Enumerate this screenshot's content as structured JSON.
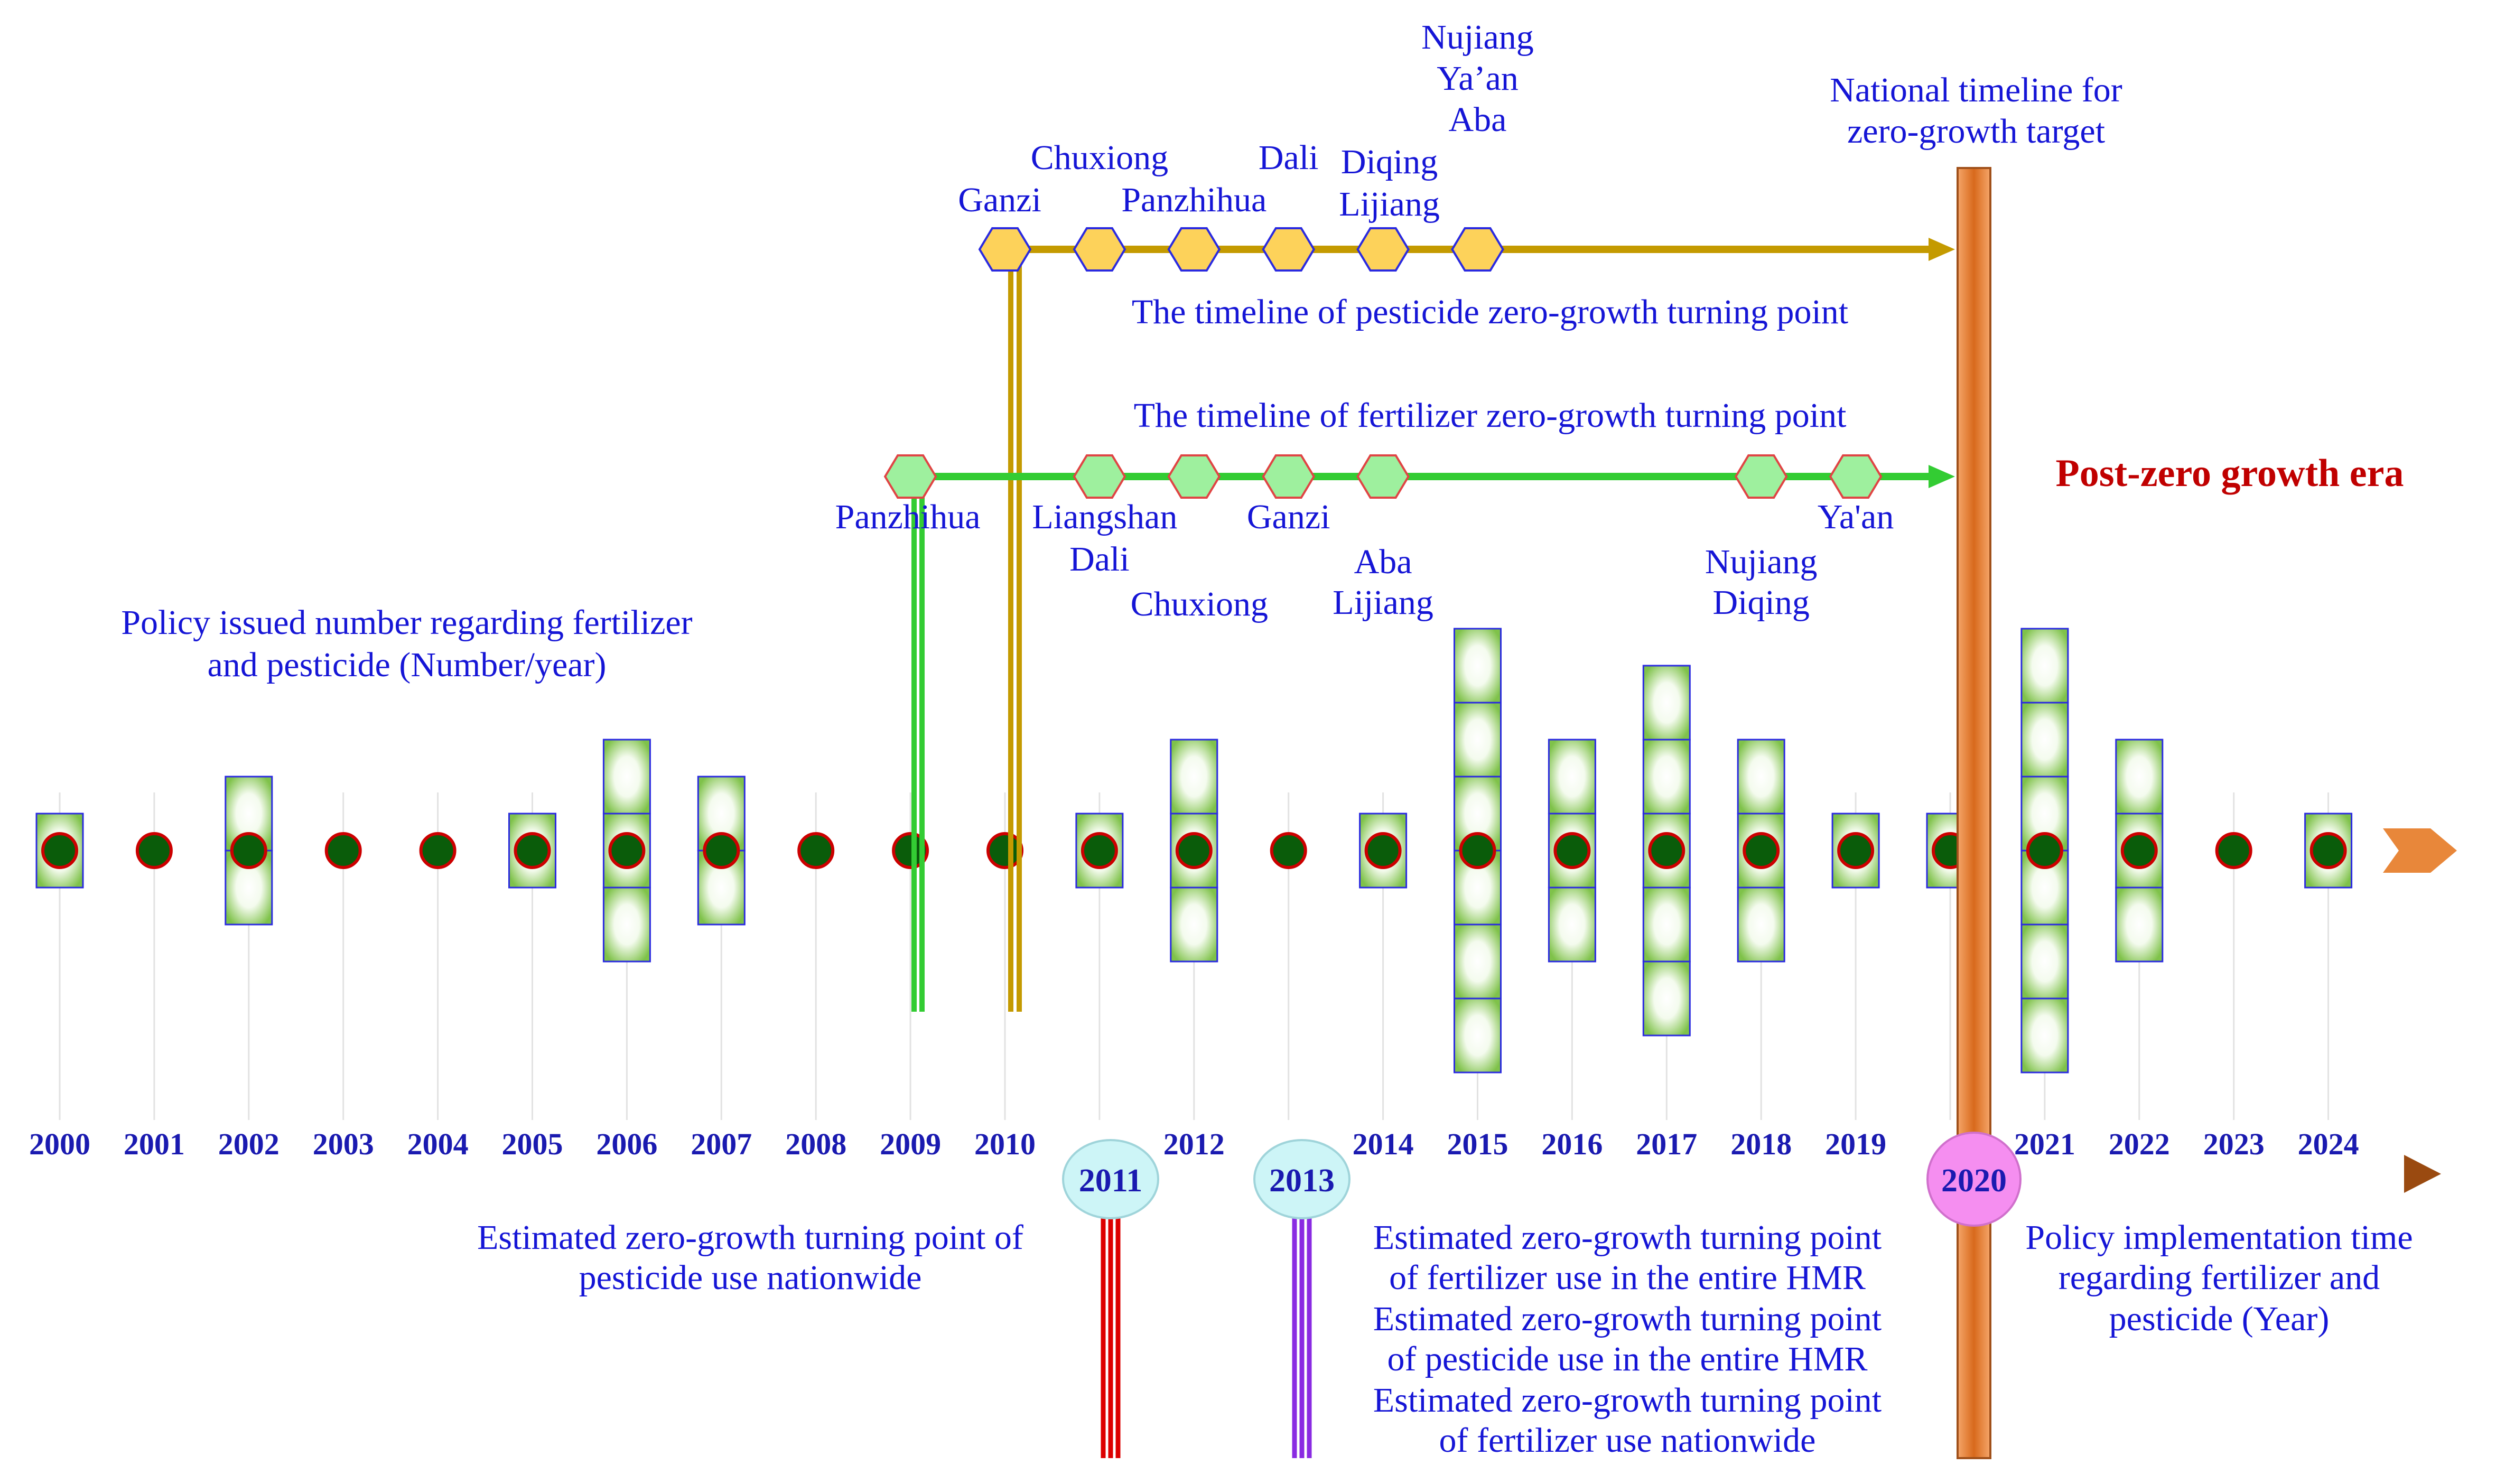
{
  "years": [
    "2000",
    "2001",
    "2002",
    "2003",
    "2004",
    "2005",
    "2006",
    "2007",
    "2008",
    "2009",
    "2010",
    "2011",
    "2012",
    "2013",
    "2014",
    "2015",
    "2016",
    "2017",
    "2018",
    "2019",
    "2020",
    "2021",
    "2022",
    "2023",
    "2024"
  ],
  "policy_counts": [
    1,
    0,
    2,
    0,
    0,
    1,
    3,
    2,
    0,
    0,
    0,
    1,
    3,
    0,
    1,
    6,
    3,
    5,
    3,
    1,
    1,
    6,
    3,
    0,
    1
  ],
  "labels": {
    "policy_axis_line1": "Policy issued number regarding fertilizer",
    "policy_axis_line2": "and pesticide (Number/year)",
    "pesticide_timeline": "The timeline of pesticide zero-growth turning point",
    "fertilizer_timeline": "The timeline of fertilizer zero-growth turning point",
    "national_line1": "National timeline for",
    "national_line2": "zero-growth target",
    "post_era": "Post-zero growth era",
    "est_pest_national_1": "Estimated zero-growth turning point of",
    "est_pest_national_2": "pesticide use nationwide",
    "est_2013_1": "Estimated zero-growth turning point",
    "est_2013_2": "of fertilizer use in the entire HMR",
    "est_2013_3": "Estimated zero-growth turning point",
    "est_2013_4": "of pesticide use in the entire HMR",
    "est_2013_5": "Estimated zero-growth turning point",
    "est_2013_6": "of fertilizer use nationwide",
    "impl_1": "Policy implementation time",
    "impl_2": "regarding fertilizer and",
    "impl_3": "pesticide (Year)"
  },
  "highlight_years": {
    "y2011": "2011",
    "y2013": "2013",
    "y2020": "2020"
  },
  "pesticide_points": [
    {
      "year": 2010,
      "regions": [
        "Ganzi"
      ]
    },
    {
      "year": 2011,
      "regions": [
        "Chuxiong"
      ]
    },
    {
      "year": 2012,
      "regions": [
        "Panzhihua"
      ]
    },
    {
      "year": 2013,
      "regions": [
        "Dali"
      ]
    },
    {
      "year": 2014,
      "regions": [
        "Diqing",
        "Lijiang"
      ]
    },
    {
      "year": 2015,
      "regions": [
        "Nujiang",
        "Ya’an",
        "Aba"
      ]
    }
  ],
  "fertilizer_points": [
    {
      "year": 2009,
      "regions": [
        "Panzhihua"
      ]
    },
    {
      "year": 2011,
      "regions": [
        "Liangshan",
        "Dali"
      ]
    },
    {
      "year": 2012,
      "regions": [
        "Chuxiong"
      ]
    },
    {
      "year": 2013,
      "regions": [
        "Ganzi"
      ]
    },
    {
      "year": 2014,
      "regions": [
        "Aba",
        "Lijiang"
      ]
    },
    {
      "year": 2018,
      "regions": [
        "Nujiang",
        "Diqing"
      ]
    },
    {
      "year": 2019,
      "regions": [
        "Ya'an"
      ]
    }
  ],
  "colors": {
    "pesticide": "#c49a00",
    "fertilizer": "#33cc33",
    "national": "#e07b2a",
    "dot": "#0a5c0a",
    "dot_ring": "#cc0000",
    "box_edge": "#2a2ae0"
  }
}
